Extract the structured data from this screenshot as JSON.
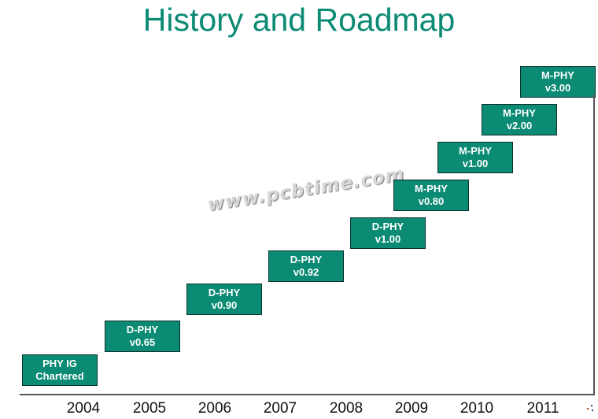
{
  "title": "History and Roadmap",
  "milestones": [
    {
      "line1": "PHY IG",
      "line2": "Chartered"
    },
    {
      "line1": "D-PHY",
      "line2": "v0.65"
    },
    {
      "line1": "D-PHY",
      "line2": "v0.90"
    },
    {
      "line1": "D-PHY",
      "line2": "v0.92"
    },
    {
      "line1": "D-PHY",
      "line2": "v1.00"
    },
    {
      "line1": "M-PHY",
      "line2": "v0.80"
    },
    {
      "line1": "M-PHY",
      "line2": "v1.00"
    },
    {
      "line1": "M-PHY",
      "line2": "v2.00"
    },
    {
      "line1": "M-PHY",
      "line2": "v3.00"
    }
  ],
  "years": [
    "2004",
    "2005",
    "2006",
    "2007",
    "2008",
    "2009",
    "2010",
    "2011"
  ],
  "watermark": "www.pcbtime.com",
  "colors": {
    "accent": "#0b8a74",
    "box_border": "#0a2f28",
    "axis": "#555555"
  }
}
